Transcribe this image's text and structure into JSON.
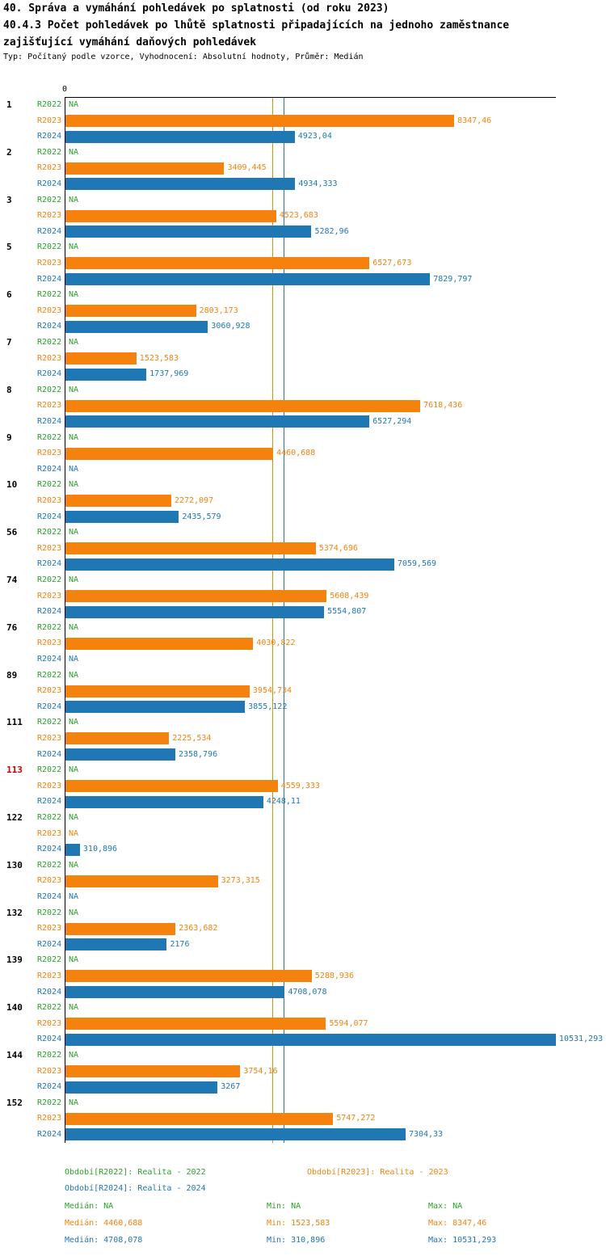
{
  "header": {
    "title": "40. Správa a vymáhání pohledávek po splatnosti (od roku 2023)",
    "subtitle_line1": "40.4.3 Počet pohledávek po lhůtě splatnosti připadajících na jednoho zaměstnance",
    "subtitle_line2": "zajišťující vymáhání daňových pohledávek",
    "meta": "Typ: Počítaný podle vzorce, Vyhodnocení: Absolutní hodnoty, Průměr: Medián"
  },
  "axis": {
    "zero_label": "0"
  },
  "colors": {
    "r2022": "#2ca02c",
    "r2023": "#f5820d",
    "r2024": "#1f77b4",
    "highlight": "#cc0000",
    "axis": "#000000"
  },
  "chart_data": {
    "type": "bar",
    "orientation": "horizontal",
    "series": [
      "R2022",
      "R2023",
      "R2024"
    ],
    "x_max": 10550,
    "xlim": [
      0,
      10550
    ],
    "reference_lines": [
      {
        "series": "R2023",
        "label": "median",
        "value": 4460.688
      },
      {
        "series": "R2024",
        "label": "median",
        "value": 4708.078
      }
    ],
    "groups": [
      {
        "id": "1",
        "highlight": false,
        "rows": [
          {
            "series": "R2022",
            "value": null,
            "label": "NA"
          },
          {
            "series": "R2023",
            "value": 8347.46,
            "label": "8347,46"
          },
          {
            "series": "R2024",
            "value": 4923.04,
            "label": "4923,04"
          }
        ]
      },
      {
        "id": "2",
        "highlight": false,
        "rows": [
          {
            "series": "R2022",
            "value": null,
            "label": "NA"
          },
          {
            "series": "R2023",
            "value": 3409.445,
            "label": "3409,445"
          },
          {
            "series": "R2024",
            "value": 4934.333,
            "label": "4934,333"
          }
        ]
      },
      {
        "id": "3",
        "highlight": false,
        "rows": [
          {
            "series": "R2022",
            "value": null,
            "label": "NA"
          },
          {
            "series": "R2023",
            "value": 4523.683,
            "label": "4523,683"
          },
          {
            "series": "R2024",
            "value": 5282.96,
            "label": "5282,96"
          }
        ]
      },
      {
        "id": "5",
        "highlight": false,
        "rows": [
          {
            "series": "R2022",
            "value": null,
            "label": "NA"
          },
          {
            "series": "R2023",
            "value": 6527.673,
            "label": "6527,673"
          },
          {
            "series": "R2024",
            "value": 7829.797,
            "label": "7829,797"
          }
        ]
      },
      {
        "id": "6",
        "highlight": false,
        "rows": [
          {
            "series": "R2022",
            "value": null,
            "label": "NA"
          },
          {
            "series": "R2023",
            "value": 2803.173,
            "label": "2803,173"
          },
          {
            "series": "R2024",
            "value": 3060.928,
            "label": "3060,928"
          }
        ]
      },
      {
        "id": "7",
        "highlight": false,
        "rows": [
          {
            "series": "R2022",
            "value": null,
            "label": "NA"
          },
          {
            "series": "R2023",
            "value": 1523.583,
            "label": "1523,583"
          },
          {
            "series": "R2024",
            "value": 1737.969,
            "label": "1737,969"
          }
        ]
      },
      {
        "id": "8",
        "highlight": false,
        "rows": [
          {
            "series": "R2022",
            "value": null,
            "label": "NA"
          },
          {
            "series": "R2023",
            "value": 7618.436,
            "label": "7618,436"
          },
          {
            "series": "R2024",
            "value": 6527.294,
            "label": "6527,294"
          }
        ]
      },
      {
        "id": "9",
        "highlight": false,
        "rows": [
          {
            "series": "R2022",
            "value": null,
            "label": "NA"
          },
          {
            "series": "R2023",
            "value": 4460.688,
            "label": "4460,688"
          },
          {
            "series": "R2024",
            "value": null,
            "label": "NA"
          }
        ]
      },
      {
        "id": "10",
        "highlight": false,
        "rows": [
          {
            "series": "R2022",
            "value": null,
            "label": "NA"
          },
          {
            "series": "R2023",
            "value": 2272.097,
            "label": "2272,097"
          },
          {
            "series": "R2024",
            "value": 2435.579,
            "label": "2435,579"
          }
        ]
      },
      {
        "id": "56",
        "highlight": false,
        "rows": [
          {
            "series": "R2022",
            "value": null,
            "label": "NA"
          },
          {
            "series": "R2023",
            "value": 5374.696,
            "label": "5374,696"
          },
          {
            "series": "R2024",
            "value": 7059.569,
            "label": "7059,569"
          }
        ]
      },
      {
        "id": "74",
        "highlight": false,
        "rows": [
          {
            "series": "R2022",
            "value": null,
            "label": "NA"
          },
          {
            "series": "R2023",
            "value": 5608.439,
            "label": "5608,439"
          },
          {
            "series": "R2024",
            "value": 5554.807,
            "label": "5554,807"
          }
        ]
      },
      {
        "id": "76",
        "highlight": false,
        "rows": [
          {
            "series": "R2022",
            "value": null,
            "label": "NA"
          },
          {
            "series": "R2023",
            "value": 4030.822,
            "label": "4030,822"
          },
          {
            "series": "R2024",
            "value": null,
            "label": "NA"
          }
        ]
      },
      {
        "id": "89",
        "highlight": false,
        "rows": [
          {
            "series": "R2022",
            "value": null,
            "label": "NA"
          },
          {
            "series": "R2023",
            "value": 3954.734,
            "label": "3954,734"
          },
          {
            "series": "R2024",
            "value": 3855.122,
            "label": "3855,122"
          }
        ]
      },
      {
        "id": "111",
        "highlight": false,
        "rows": [
          {
            "series": "R2022",
            "value": null,
            "label": "NA"
          },
          {
            "series": "R2023",
            "value": 2225.534,
            "label": "2225,534"
          },
          {
            "series": "R2024",
            "value": 2358.796,
            "label": "2358,796"
          }
        ]
      },
      {
        "id": "113",
        "highlight": true,
        "rows": [
          {
            "series": "R2022",
            "value": null,
            "label": "NA"
          },
          {
            "series": "R2023",
            "value": 4559.333,
            "label": "4559,333"
          },
          {
            "series": "R2024",
            "value": 4248.11,
            "label": "4248,11"
          }
        ]
      },
      {
        "id": "122",
        "highlight": false,
        "rows": [
          {
            "series": "R2022",
            "value": null,
            "label": "NA"
          },
          {
            "series": "R2023",
            "value": null,
            "label": "NA"
          },
          {
            "series": "R2024",
            "value": 310.896,
            "label": "310,896"
          }
        ]
      },
      {
        "id": "130",
        "highlight": false,
        "rows": [
          {
            "series": "R2022",
            "value": null,
            "label": "NA"
          },
          {
            "series": "R2023",
            "value": 3273.315,
            "label": "3273,315"
          },
          {
            "series": "R2024",
            "value": null,
            "label": "NA"
          }
        ]
      },
      {
        "id": "132",
        "highlight": false,
        "rows": [
          {
            "series": "R2022",
            "value": null,
            "label": "NA"
          },
          {
            "series": "R2023",
            "value": 2363.682,
            "label": "2363,682"
          },
          {
            "series": "R2024",
            "value": 2176,
            "label": "2176"
          }
        ]
      },
      {
        "id": "139",
        "highlight": false,
        "rows": [
          {
            "series": "R2022",
            "value": null,
            "label": "NA"
          },
          {
            "series": "R2023",
            "value": 5288.936,
            "label": "5288,936"
          },
          {
            "series": "R2024",
            "value": 4708.078,
            "label": "4708,078"
          }
        ]
      },
      {
        "id": "140",
        "highlight": false,
        "rows": [
          {
            "series": "R2022",
            "value": null,
            "label": "NA"
          },
          {
            "series": "R2023",
            "value": 5594.077,
            "label": "5594,077"
          },
          {
            "series": "R2024",
            "value": 10531.293,
            "label": "10531,293"
          }
        ]
      },
      {
        "id": "144",
        "highlight": false,
        "rows": [
          {
            "series": "R2022",
            "value": null,
            "label": "NA"
          },
          {
            "series": "R2023",
            "value": 3754.16,
            "label": "3754,16"
          },
          {
            "series": "R2024",
            "value": 3267,
            "label": "3267"
          }
        ]
      },
      {
        "id": "152",
        "highlight": false,
        "rows": [
          {
            "series": "R2022",
            "value": null,
            "label": "NA"
          },
          {
            "series": "R2023",
            "value": 5747.272,
            "label": "5747,272"
          },
          {
            "series": "R2024",
            "value": 7304.33,
            "label": "7304,33"
          }
        ]
      }
    ]
  },
  "legend": {
    "r2022": "Období[R2022]: Realita - 2022",
    "r2023": "Období[R2023]: Realita - 2023",
    "r2024": "Období[R2024]: Realita - 2024"
  },
  "stats": {
    "r2022": {
      "median": "Medián: NA",
      "min": "Min: NA",
      "max": "Max: NA"
    },
    "r2023": {
      "median": "Medián: 4460,688",
      "min": "Min: 1523,583",
      "max": "Max: 8347,46"
    },
    "r2024": {
      "median": "Medián: 4708,078",
      "min": "Min: 310,896",
      "max": "Max: 10531,293"
    }
  }
}
